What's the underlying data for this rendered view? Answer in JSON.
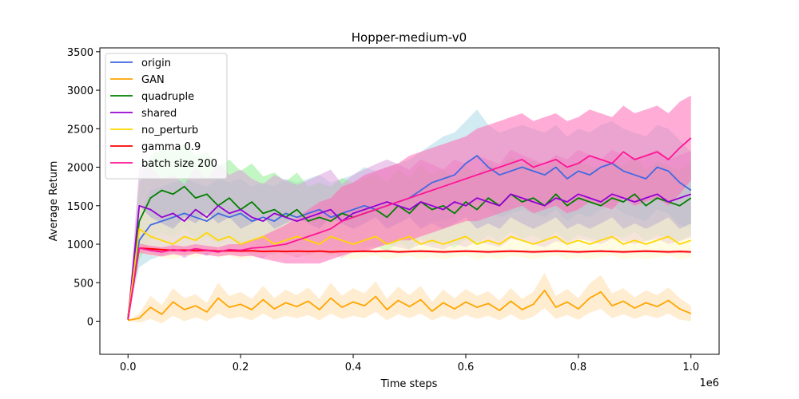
{
  "chart_data": {
    "type": "line",
    "title": "Hopper-medium-v0",
    "xlabel": "Time steps",
    "ylabel": "Average Return",
    "x_offset_label": "1e6",
    "xlim": [
      -0.05,
      1.05
    ],
    "ylim": [
      -430,
      3550
    ],
    "x_ticks": [
      0.0,
      0.2,
      0.4,
      0.6,
      0.8,
      1.0
    ],
    "x_tick_labels": [
      "0.0",
      "0.2",
      "0.4",
      "0.6",
      "0.8",
      "1.0"
    ],
    "y_ticks": [
      0,
      500,
      1000,
      1500,
      2000,
      2500,
      3000,
      3500
    ],
    "y_tick_labels": [
      "0",
      "500",
      "1000",
      "1500",
      "2000",
      "2500",
      "3000",
      "3500"
    ],
    "grid": false,
    "legend_position": "top-left",
    "shaded_band": "std",
    "x": [
      0.0,
      0.02,
      0.04,
      0.06,
      0.08,
      0.1,
      0.12,
      0.14,
      0.16,
      0.18,
      0.2,
      0.22,
      0.24,
      0.26,
      0.28,
      0.3,
      0.32,
      0.34,
      0.36,
      0.38,
      0.4,
      0.42,
      0.44,
      0.46,
      0.48,
      0.5,
      0.52,
      0.54,
      0.56,
      0.58,
      0.6,
      0.62,
      0.64,
      0.66,
      0.68,
      0.7,
      0.72,
      0.74,
      0.76,
      0.78,
      0.8,
      0.82,
      0.84,
      0.86,
      0.88,
      0.9,
      0.92,
      0.94,
      0.96,
      0.98,
      1.0
    ],
    "series": [
      {
        "name": "origin",
        "color": "#4169e1",
        "band": "#add8e6",
        "values": [
          60,
          1050,
          1250,
          1300,
          1350,
          1400,
          1350,
          1300,
          1400,
          1350,
          1400,
          1300,
          1350,
          1300,
          1400,
          1350,
          1400,
          1450,
          1350,
          1400,
          1450,
          1500,
          1450,
          1500,
          1550,
          1600,
          1700,
          1800,
          1850,
          1900,
          2050,
          2150,
          2000,
          1900,
          1950,
          2000,
          1950,
          1900,
          2000,
          1850,
          1950,
          1900,
          2000,
          2050,
          1950,
          1900,
          1850,
          2000,
          1950,
          1800,
          1700
        ],
        "std": [
          0,
          350,
          450,
          450,
          450,
          450,
          450,
          450,
          450,
          450,
          450,
          450,
          450,
          450,
          450,
          450,
          450,
          450,
          450,
          450,
          450,
          500,
          500,
          500,
          500,
          500,
          500,
          500,
          550,
          550,
          550,
          600,
          550,
          550,
          550,
          550,
          550,
          550,
          550,
          550,
          550,
          550,
          550,
          550,
          550,
          550,
          550,
          550,
          550,
          550,
          500
        ]
      },
      {
        "name": "GAN",
        "color": "#ffa500",
        "band": "#ffdead",
        "values": [
          10,
          40,
          180,
          90,
          250,
          150,
          200,
          120,
          300,
          180,
          220,
          150,
          280,
          160,
          240,
          190,
          260,
          150,
          300,
          180,
          250,
          200,
          320,
          150,
          270,
          190,
          280,
          130,
          240,
          160,
          250,
          180,
          230,
          140,
          260,
          150,
          220,
          400,
          180,
          250,
          160,
          300,
          380,
          200,
          260,
          170,
          240,
          190,
          270,
          160,
          100
        ],
        "std": [
          0,
          60,
          150,
          120,
          180,
          150,
          150,
          120,
          200,
          150,
          160,
          140,
          180,
          140,
          170,
          150,
          180,
          140,
          200,
          150,
          180,
          160,
          200,
          140,
          180,
          150,
          180,
          120,
          170,
          140,
          170,
          150,
          160,
          130,
          170,
          140,
          160,
          230,
          150,
          170,
          140,
          190,
          220,
          160,
          170,
          140,
          160,
          150,
          170,
          140,
          100
        ]
      },
      {
        "name": "quadruple",
        "color": "#008000",
        "band": "#90ee90",
        "values": [
          50,
          1300,
          1600,
          1700,
          1650,
          1750,
          1600,
          1650,
          1500,
          1600,
          1450,
          1550,
          1400,
          1450,
          1350,
          1450,
          1300,
          1350,
          1300,
          1400,
          1350,
          1400,
          1450,
          1350,
          1500,
          1400,
          1550,
          1450,
          1500,
          1400,
          1550,
          1450,
          1600,
          1500,
          1650,
          1550,
          1600,
          1500,
          1650,
          1500,
          1600,
          1550,
          1500,
          1600,
          1550,
          1650,
          1500,
          1600,
          1550,
          1500,
          1600
        ],
        "std": [
          0,
          500,
          550,
          550,
          550,
          550,
          550,
          550,
          500,
          500,
          500,
          500,
          480,
          480,
          460,
          480,
          450,
          450,
          450,
          460,
          450,
          460,
          470,
          450,
          480,
          460,
          480,
          460,
          470,
          450,
          480,
          460,
          480,
          470,
          490,
          480,
          480,
          470,
          490,
          470,
          480,
          470,
          460,
          480,
          470,
          490,
          460,
          480,
          470,
          460,
          470
        ]
      },
      {
        "name": "shared",
        "color": "#9400d3",
        "band": "#dda0dd",
        "values": [
          30,
          1500,
          1450,
          1350,
          1400,
          1300,
          1450,
          1350,
          1500,
          1400,
          1450,
          1350,
          1300,
          1400,
          1350,
          1300,
          1350,
          1400,
          1450,
          1300,
          1400,
          1450,
          1500,
          1550,
          1500,
          1450,
          1550,
          1500,
          1450,
          1550,
          1500,
          1600,
          1550,
          1500,
          1650,
          1600,
          1550,
          1500,
          1600,
          1550,
          1650,
          1600,
          1550,
          1650,
          1600,
          1550,
          1600,
          1650,
          1550,
          1600,
          1650
        ],
        "std": [
          0,
          500,
          550,
          500,
          500,
          480,
          550,
          500,
          550,
          500,
          520,
          500,
          480,
          500,
          480,
          470,
          480,
          500,
          520,
          480,
          500,
          520,
          540,
          550,
          540,
          520,
          550,
          540,
          520,
          550,
          540,
          560,
          550,
          540,
          580,
          560,
          550,
          540,
          560,
          550,
          580,
          560,
          550,
          580,
          560,
          550,
          560,
          580,
          550,
          560,
          560
        ]
      },
      {
        "name": "no_perturb",
        "color": "#ffd700",
        "band": "#fffacd",
        "values": [
          40,
          1200,
          1100,
          1050,
          1000,
          1100,
          1050,
          1150,
          1050,
          1100,
          1000,
          1050,
          1100,
          1000,
          1050,
          1100,
          1050,
          1000,
          1100,
          1050,
          1000,
          1050,
          1100,
          1000,
          1050,
          1100,
          1000,
          1050,
          1000,
          1050,
          1100,
          1000,
          1050,
          1000,
          1100,
          1050,
          1000,
          1050,
          1100,
          1000,
          1050,
          1000,
          1050,
          1100,
          1000,
          1050,
          1000,
          1050,
          1100,
          1000,
          1050
        ],
        "std": [
          0,
          300,
          250,
          220,
          200,
          250,
          220,
          260,
          220,
          250,
          200,
          220,
          250,
          200,
          220,
          250,
          220,
          200,
          250,
          220,
          200,
          220,
          250,
          200,
          220,
          250,
          200,
          220,
          200,
          220,
          250,
          200,
          220,
          200,
          250,
          220,
          200,
          220,
          250,
          200,
          220,
          200,
          220,
          250,
          200,
          220,
          200,
          220,
          250,
          200,
          220
        ]
      },
      {
        "name": "gamma 0.9",
        "color": "#ff0000",
        "band": "#ffc0cb",
        "values": [
          20,
          950,
          940,
          930,
          920,
          925,
          915,
          920,
          910,
          915,
          910,
          915,
          905,
          910,
          905,
          910,
          905,
          910,
          900,
          905,
          905,
          910,
          905,
          910,
          900,
          905,
          910,
          905,
          900,
          905,
          910,
          905,
          900,
          905,
          910,
          905,
          900,
          905,
          910,
          905,
          900,
          905,
          910,
          905,
          900,
          905,
          910,
          905,
          900,
          905,
          900
        ],
        "std": [
          0,
          30,
          25,
          25,
          20,
          20,
          20,
          20,
          20,
          20,
          20,
          20,
          20,
          20,
          20,
          20,
          20,
          20,
          20,
          20,
          20,
          20,
          20,
          20,
          20,
          20,
          20,
          20,
          20,
          20,
          20,
          20,
          20,
          20,
          20,
          20,
          20,
          20,
          20,
          20,
          20,
          20,
          20,
          20,
          20,
          20,
          20,
          20,
          20,
          20,
          20
        ]
      },
      {
        "name": "batch size 200",
        "color": "#ff1493",
        "band": "#ff69b4",
        "values": [
          25,
          950,
          920,
          900,
          930,
          910,
          940,
          920,
          900,
          930,
          920,
          950,
          960,
          980,
          1000,
          1050,
          1100,
          1150,
          1200,
          1300,
          1350,
          1400,
          1450,
          1500,
          1550,
          1600,
          1650,
          1700,
          1750,
          1800,
          1850,
          1900,
          1950,
          2000,
          2050,
          2100,
          2000,
          2050,
          2100,
          2000,
          2050,
          2150,
          2100,
          2050,
          2200,
          2100,
          2150,
          2200,
          2100,
          2250,
          2380
        ],
        "std": [
          0,
          60,
          60,
          60,
          60,
          60,
          60,
          60,
          60,
          70,
          80,
          100,
          150,
          200,
          250,
          300,
          350,
          400,
          400,
          450,
          450,
          500,
          500,
          500,
          500,
          550,
          550,
          550,
          550,
          550,
          550,
          600,
          600,
          600,
          600,
          600,
          600,
          600,
          600,
          600,
          600,
          600,
          600,
          600,
          600,
          600,
          600,
          600,
          600,
          600,
          550
        ]
      }
    ]
  }
}
